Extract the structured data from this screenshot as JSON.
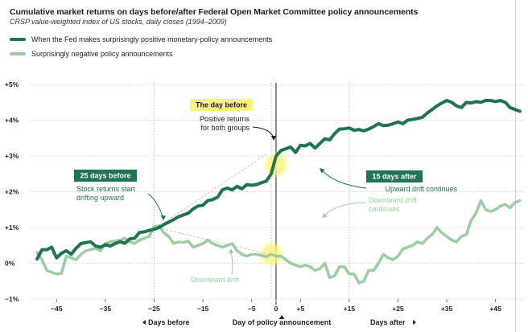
{
  "chart_data": {
    "type": "line",
    "title": "Cumulative market returns on days before/after Federal Open Market Committee policy announcements",
    "subtitle": "CRSP value-weighted index of US stocks, daily closes (1994–2009)",
    "xlabel": "Day of policy announcement",
    "ylabel": "",
    "xlim": [
      -50,
      51
    ],
    "ylim": [
      -1,
      5
    ],
    "x_ticks": [
      -45,
      -35,
      -25,
      -15,
      -5,
      0,
      5,
      15,
      25,
      35,
      45
    ],
    "x_tick_labels": [
      "−45",
      "−35",
      "−25",
      "−15",
      "−5",
      "0",
      "+5",
      "+15",
      "+25",
      "+35",
      "+45"
    ],
    "y_ticks": [
      -1,
      0,
      1,
      2,
      3,
      4,
      5
    ],
    "y_tick_labels": [
      "−1%",
      "0%",
      "+1%",
      "+2%",
      "+3%",
      "+4%",
      "+5%"
    ],
    "bottom_labels": {
      "before": "Days before",
      "center": "Day of policy announcement",
      "after": "Days after"
    },
    "reference_lines": {
      "solid_x": [
        0
      ],
      "dotted_x": [
        -25,
        -1,
        15
      ]
    },
    "series": [
      {
        "name": "When the Fed makes surprisingly positive monetary-policy announcements",
        "color": "#1f7550",
        "x": [
          -49,
          -48,
          -47,
          -46,
          -45,
          -44,
          -43,
          -42,
          -41,
          -40,
          -39,
          -38,
          -37,
          -36,
          -35,
          -34,
          -33,
          -32,
          -31,
          -30,
          -29,
          -28,
          -27,
          -26,
          -25,
          -24,
          -23,
          -22,
          -21,
          -20,
          -19,
          -18,
          -17,
          -16,
          -15,
          -14,
          -13,
          -12,
          -11,
          -10,
          -9,
          -8,
          -7,
          -6,
          -5,
          -4,
          -3,
          -2,
          -1,
          0,
          1,
          2,
          3,
          4,
          5,
          6,
          7,
          8,
          9,
          10,
          11,
          12,
          13,
          14,
          15,
          16,
          17,
          18,
          19,
          20,
          21,
          22,
          23,
          24,
          25,
          26,
          27,
          28,
          29,
          30,
          31,
          32,
          33,
          34,
          35,
          36,
          37,
          38,
          39,
          40,
          41,
          42,
          43,
          44,
          45,
          46,
          47,
          48,
          49,
          50
        ],
        "values": [
          0.12,
          0.38,
          0.38,
          0.45,
          0.15,
          0.28,
          0.35,
          0.25,
          0.42,
          0.55,
          0.58,
          0.6,
          0.48,
          0.45,
          0.52,
          0.48,
          0.55,
          0.6,
          0.56,
          0.68,
          0.7,
          0.86,
          0.88,
          0.92,
          0.95,
          1.0,
          1.08,
          1.15,
          1.22,
          1.3,
          1.35,
          1.4,
          1.52,
          1.6,
          1.62,
          1.75,
          1.78,
          1.85,
          2.05,
          2.1,
          2.05,
          2.15,
          2.08,
          2.2,
          2.18,
          2.2,
          2.25,
          2.3,
          2.5,
          3.0,
          3.15,
          3.2,
          3.25,
          3.1,
          3.3,
          3.28,
          3.35,
          3.22,
          3.35,
          3.48,
          3.45,
          3.62,
          3.75,
          3.76,
          3.78,
          3.72,
          3.74,
          3.7,
          3.75,
          3.82,
          3.9,
          3.85,
          3.86,
          3.9,
          3.95,
          3.9,
          4.0,
          4.02,
          4.05,
          4.08,
          4.2,
          4.3,
          4.4,
          4.48,
          4.55,
          4.5,
          4.4,
          4.35,
          4.5,
          4.48,
          4.52,
          4.5,
          4.55,
          4.55,
          4.52,
          4.55,
          4.5,
          4.35,
          4.3,
          4.25
        ]
      },
      {
        "name": "Surprisingly negative policy announcements",
        "color": "#9ccda2",
        "x": [
          -49,
          -48,
          -47,
          -46,
          -45,
          -44,
          -43,
          -42,
          -41,
          -40,
          -39,
          -38,
          -37,
          -36,
          -35,
          -34,
          -33,
          -32,
          -31,
          -30,
          -29,
          -28,
          -27,
          -26,
          -25,
          -24,
          -23,
          -22,
          -21,
          -20,
          -19,
          -18,
          -17,
          -16,
          -15,
          -14,
          -13,
          -12,
          -11,
          -10,
          -9,
          -8,
          -7,
          -6,
          -5,
          -4,
          -3,
          -2,
          -1,
          0,
          1,
          2,
          3,
          4,
          5,
          6,
          7,
          8,
          9,
          10,
          11,
          12,
          13,
          14,
          15,
          16,
          17,
          18,
          19,
          20,
          21,
          22,
          23,
          24,
          25,
          26,
          27,
          28,
          29,
          30,
          31,
          32,
          33,
          34,
          35,
          36,
          37,
          38,
          39,
          40,
          41,
          42,
          43,
          44,
          45,
          46,
          47,
          48,
          49,
          50
        ],
        "values": [
          0.3,
          0.1,
          -0.2,
          -0.25,
          -0.3,
          -0.28,
          0.2,
          0.15,
          0.1,
          0.25,
          0.35,
          0.38,
          0.42,
          0.35,
          0.55,
          0.6,
          0.62,
          0.65,
          0.7,
          0.6,
          0.55,
          0.65,
          0.7,
          0.75,
          1.02,
          1.05,
          0.85,
          0.75,
          0.55,
          0.6,
          0.58,
          0.62,
          0.45,
          0.5,
          0.55,
          0.65,
          0.55,
          0.5,
          0.45,
          0.5,
          0.55,
          0.35,
          0.25,
          0.2,
          0.25,
          0.25,
          0.22,
          0.18,
          0.25,
          0.2,
          0.2,
          0.1,
          0.0,
          -0.05,
          -0.1,
          -0.05,
          -0.1,
          -0.2,
          -0.15,
          0.0,
          -0.4,
          -0.35,
          -0.1,
          -0.1,
          -0.3,
          -0.3,
          -0.55,
          -0.5,
          -0.2,
          -0.2,
          0.0,
          0.25,
          0.15,
          0.1,
          0.2,
          0.4,
          0.45,
          0.5,
          0.6,
          0.55,
          0.7,
          0.8,
          1.0,
          0.85,
          0.75,
          0.65,
          0.6,
          0.75,
          0.8,
          1.2,
          1.4,
          1.75,
          1.5,
          1.45,
          1.5,
          1.6,
          1.65,
          1.55,
          1.7,
          1.75
        ]
      }
    ],
    "highlights": [
      {
        "x": 0,
        "y": 2.75
      },
      {
        "x": -1,
        "y": 0.25
      }
    ],
    "annotations": [
      {
        "title": "25 days before",
        "text": [
          "Stock returns start",
          "drifting upward"
        ],
        "style": "dark"
      },
      {
        "title": "The day before",
        "text": [
          "Positive returns",
          "for both groups"
        ],
        "style": "yellow"
      },
      {
        "title": "15 days after",
        "text": [
          "Upward drift continues"
        ],
        "style": "dark"
      },
      {
        "title": "",
        "text": [
          "Downward drift",
          "continues"
        ],
        "style": "light"
      },
      {
        "title": "",
        "text": [
          "Downward drift"
        ],
        "style": "light"
      }
    ]
  }
}
